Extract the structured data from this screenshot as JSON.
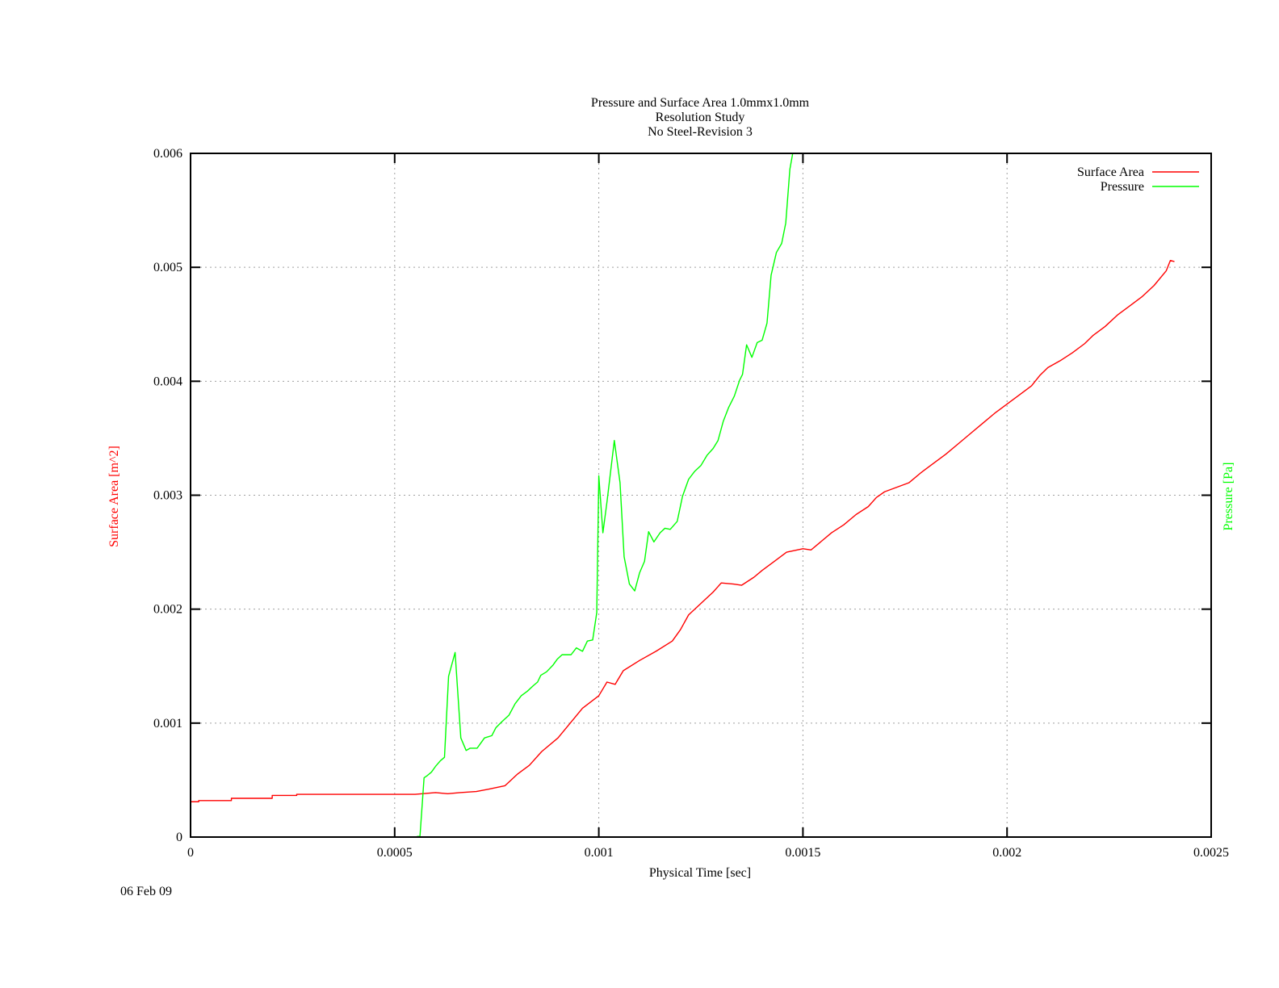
{
  "chart_data": {
    "type": "line",
    "title": [
      "Pressure and Surface Area 1.0mmx1.0mm",
      "Resolution Study",
      "No Steel-Revision 3"
    ],
    "xlabel": "Physical Time [sec]",
    "ylabel": "Surface Area [m^2]",
    "y2label": "Pressure [Pa]",
    "footer_date": "06 Feb 09",
    "xlim": [
      0,
      0.0025
    ],
    "ylim": [
      0,
      0.006
    ],
    "x_ticks": [
      {
        "value": 0,
        "label": "0"
      },
      {
        "value": 0.0005,
        "label": "0.0005"
      },
      {
        "value": 0.001,
        "label": "0.001"
      },
      {
        "value": 0.0015,
        "label": "0.0015"
      },
      {
        "value": 0.002,
        "label": "0.002"
      },
      {
        "value": 0.0025,
        "label": "0.0025"
      }
    ],
    "y_ticks": [
      {
        "value": 0,
        "label": "0"
      },
      {
        "value": 0.001,
        "label": "0.001"
      },
      {
        "value": 0.002,
        "label": "0.002"
      },
      {
        "value": 0.003,
        "label": "0.003"
      },
      {
        "value": 0.004,
        "label": "0.004"
      },
      {
        "value": 0.005,
        "label": "0.005"
      },
      {
        "value": 0.006,
        "label": "0.006"
      }
    ],
    "grid": true,
    "legend_position": "top-right",
    "series": [
      {
        "name": "Surface Area",
        "color": "#ff0000",
        "points": [
          [
            0,
            0.00031
          ],
          [
            2e-05,
            0.00031
          ],
          [
            2e-05,
            0.00032
          ],
          [
            0.0001,
            0.00032
          ],
          [
            0.0001,
            0.00034
          ],
          [
            0.0002,
            0.00034
          ],
          [
            0.0002,
            0.000365
          ],
          [
            0.00026,
            0.000365
          ],
          [
            0.00026,
            0.000375
          ],
          [
            0.00055,
            0.000375
          ],
          [
            0.0006,
            0.00039
          ],
          [
            0.00063,
            0.00038
          ],
          [
            0.00066,
            0.00039
          ],
          [
            0.0007,
            0.0004
          ],
          [
            0.00073,
            0.00042
          ],
          [
            0.00077,
            0.00045
          ],
          [
            0.0008,
            0.00055
          ],
          [
            0.00083,
            0.00063
          ],
          [
            0.00086,
            0.00075
          ],
          [
            0.0009,
            0.00087
          ],
          [
            0.00093,
            0.001
          ],
          [
            0.00096,
            0.00113
          ],
          [
            0.001,
            0.00124
          ],
          [
            0.00102,
            0.00136
          ],
          [
            0.00104,
            0.00134
          ],
          [
            0.00106,
            0.00146
          ],
          [
            0.0011,
            0.00155
          ],
          [
            0.00114,
            0.00163
          ],
          [
            0.00118,
            0.00172
          ],
          [
            0.0012,
            0.00182
          ],
          [
            0.00122,
            0.00195
          ],
          [
            0.00125,
            0.00205
          ],
          [
            0.00128,
            0.00215
          ],
          [
            0.0013,
            0.00223
          ],
          [
            0.00133,
            0.00222
          ],
          [
            0.00135,
            0.00221
          ],
          [
            0.00138,
            0.00228
          ],
          [
            0.0014,
            0.00234
          ],
          [
            0.00143,
            0.00242
          ],
          [
            0.00146,
            0.0025
          ],
          [
            0.0015,
            0.00253
          ],
          [
            0.00152,
            0.00252
          ],
          [
            0.00154,
            0.00258
          ],
          [
            0.00157,
            0.00267
          ],
          [
            0.0016,
            0.00274
          ],
          [
            0.00163,
            0.00283
          ],
          [
            0.00166,
            0.0029
          ],
          [
            0.00168,
            0.00298
          ],
          [
            0.0017,
            0.00303
          ],
          [
            0.00173,
            0.00307
          ],
          [
            0.00176,
            0.00311
          ],
          [
            0.00179,
            0.0032
          ],
          [
            0.00182,
            0.00328
          ],
          [
            0.00185,
            0.00336
          ],
          [
            0.00188,
            0.00345
          ],
          [
            0.00191,
            0.00354
          ],
          [
            0.00194,
            0.00363
          ],
          [
            0.00197,
            0.00372
          ],
          [
            0.002,
            0.0038
          ],
          [
            0.00203,
            0.00388
          ],
          [
            0.00206,
            0.00396
          ],
          [
            0.00208,
            0.00405
          ],
          [
            0.0021,
            0.00412
          ],
          [
            0.00213,
            0.00418
          ],
          [
            0.00216,
            0.00425
          ],
          [
            0.00219,
            0.00433
          ],
          [
            0.00221,
            0.0044
          ],
          [
            0.00224,
            0.00448
          ],
          [
            0.00227,
            0.00458
          ],
          [
            0.0023,
            0.00466
          ],
          [
            0.00233,
            0.00474
          ],
          [
            0.00236,
            0.00484
          ],
          [
            0.00239,
            0.00497
          ],
          [
            0.0024,
            0.00506
          ],
          [
            0.00241,
            0.00505
          ]
        ]
      },
      {
        "name": "Pressure",
        "color": "#00ff00",
        "points": [
          [
            0,
            0
          ],
          [
            0.00055,
            0
          ],
          [
            0.000562,
            1e-05
          ],
          [
            0.000572,
            0.00052
          ],
          [
            0.00058,
            0.00054
          ],
          [
            0.00059,
            0.00057
          ],
          [
            0.0006,
            0.00062
          ],
          [
            0.000612,
            0.00067
          ],
          [
            0.000622,
            0.0007
          ],
          [
            0.000632,
            0.00141
          ],
          [
            0.000648,
            0.00162
          ],
          [
            0.000662,
            0.00087
          ],
          [
            0.000675,
            0.00076
          ],
          [
            0.000685,
            0.00078
          ],
          [
            0.000702,
            0.00078
          ],
          [
            0.000712,
            0.00083
          ],
          [
            0.00072,
            0.00087
          ],
          [
            0.000738,
            0.00089
          ],
          [
            0.000748,
            0.00096
          ],
          [
            0.000762,
            0.00101
          ],
          [
            0.00078,
            0.00107
          ],
          [
            0.000795,
            0.00117
          ],
          [
            0.00081,
            0.00124
          ],
          [
            0.000825,
            0.00128
          ],
          [
            0.00084,
            0.00133
          ],
          [
            0.00085,
            0.00136
          ],
          [
            0.000858,
            0.00142
          ],
          [
            0.000872,
            0.00145
          ],
          [
            0.000888,
            0.00151
          ],
          [
            0.000898,
            0.00156
          ],
          [
            0.00091,
            0.0016
          ],
          [
            0.000932,
            0.0016
          ],
          [
            0.000945,
            0.00166
          ],
          [
            0.00096,
            0.00163
          ],
          [
            0.000972,
            0.00172
          ],
          [
            0.000985,
            0.00173
          ],
          [
            0.000995,
            0.00197
          ],
          [
            0.001,
            0.00317
          ],
          [
            0.00101,
            0.00267
          ],
          [
            0.00102,
            0.00294
          ],
          [
            0.001038,
            0.00348
          ],
          [
            0.001052,
            0.00311
          ],
          [
            0.001062,
            0.00246
          ],
          [
            0.001075,
            0.00222
          ],
          [
            0.001088,
            0.00216
          ],
          [
            0.0011,
            0.00232
          ],
          [
            0.001112,
            0.00242
          ],
          [
            0.001122,
            0.00268
          ],
          [
            0.001135,
            0.00259
          ],
          [
            0.00115,
            0.00267
          ],
          [
            0.001162,
            0.00271
          ],
          [
            0.001175,
            0.0027
          ],
          [
            0.001192,
            0.00277
          ],
          [
            0.001205,
            0.00299
          ],
          [
            0.00122,
            0.00314
          ],
          [
            0.001235,
            0.00321
          ],
          [
            0.00125,
            0.00326
          ],
          [
            0.001265,
            0.00335
          ],
          [
            0.00128,
            0.00341
          ],
          [
            0.001292,
            0.00348
          ],
          [
            0.001305,
            0.00365
          ],
          [
            0.001318,
            0.00377
          ],
          [
            0.001332,
            0.00387
          ],
          [
            0.001345,
            0.00401
          ],
          [
            0.001352,
            0.00406
          ],
          [
            0.001362,
            0.00432
          ],
          [
            0.001375,
            0.00421
          ],
          [
            0.001388,
            0.00434
          ],
          [
            0.0014,
            0.00436
          ],
          [
            0.001412,
            0.00451
          ],
          [
            0.001422,
            0.00493
          ],
          [
            0.001435,
            0.00513
          ],
          [
            0.001448,
            0.00521
          ],
          [
            0.001458,
            0.00539
          ],
          [
            0.001468,
            0.00586
          ],
          [
            0.001475,
            0.006
          ]
        ]
      }
    ]
  }
}
